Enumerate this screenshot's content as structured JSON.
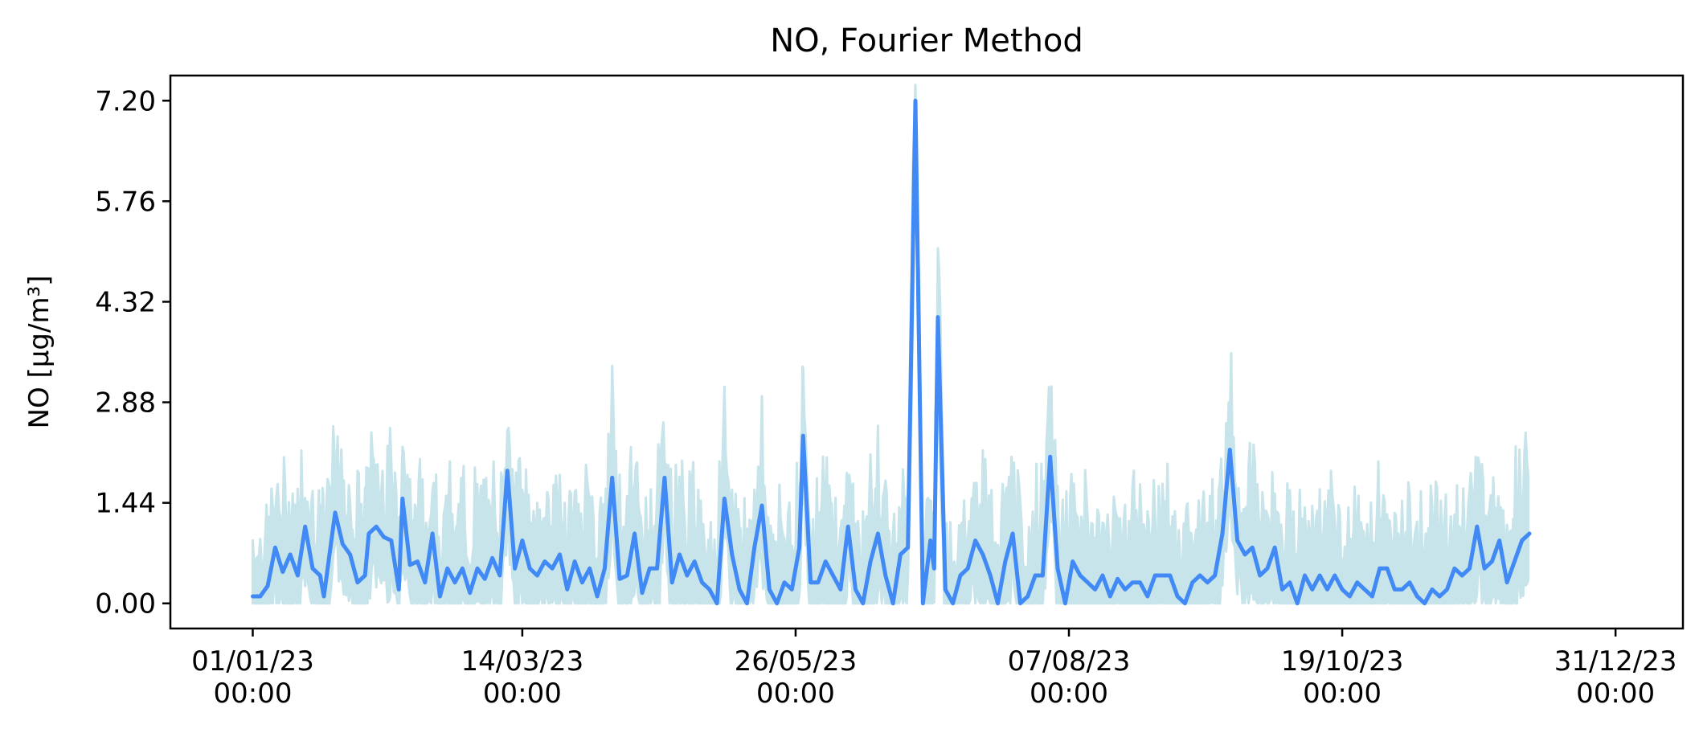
{
  "chart_data": {
    "type": "line",
    "title": "NO, Fourier Method",
    "ylabel": "NO [µg/m³]",
    "xlabel": "",
    "ylim": [
      -0.36,
      7.56
    ],
    "xlim": [
      "2022-12-10",
      "2024-01-18"
    ],
    "yticks": [
      "0.00",
      "1.44",
      "2.88",
      "4.32",
      "5.76",
      "7.20"
    ],
    "xticks": [
      {
        "date": "2023-01-01",
        "line1": "01/01/23",
        "line2": "00:00"
      },
      {
        "date": "2023-03-14",
        "line1": "14/03/23",
        "line2": "00:00"
      },
      {
        "date": "2023-05-26",
        "line1": "26/05/23",
        "line2": "00:00"
      },
      {
        "date": "2023-08-07",
        "line1": "07/08/23",
        "line2": "00:00"
      },
      {
        "date": "2023-10-19",
        "line1": "19/10/23",
        "line2": "00:00"
      },
      {
        "date": "2023-12-31",
        "line1": "31/12/23",
        "line2": "00:00"
      }
    ],
    "grid": false,
    "legend": "none",
    "colors": {
      "line": "#4189f5",
      "band": "#c6e4ea"
    },
    "series": [
      {
        "values": [
          [
            "2023-01-01",
            0.1
          ],
          [
            "2023-01-03",
            0.1
          ],
          [
            "2023-01-05",
            0.25
          ],
          [
            "2023-01-07",
            0.8
          ],
          [
            "2023-01-09",
            0.45
          ],
          [
            "2023-01-11",
            0.7
          ],
          [
            "2023-01-13",
            0.4
          ],
          [
            "2023-01-15",
            1.1
          ],
          [
            "2023-01-17",
            0.5
          ],
          [
            "2023-01-19",
            0.4
          ],
          [
            "2023-01-20",
            0.1
          ],
          [
            "2023-01-23",
            1.3
          ],
          [
            "2023-01-25",
            0.85
          ],
          [
            "2023-01-27",
            0.7
          ],
          [
            "2023-01-29",
            0.3
          ],
          [
            "2023-01-31",
            0.4
          ],
          [
            "2023-02-01",
            1.0
          ],
          [
            "2023-02-03",
            1.1
          ],
          [
            "2023-02-05",
            0.95
          ],
          [
            "2023-02-07",
            0.9
          ],
          [
            "2023-02-09",
            0.2
          ],
          [
            "2023-02-10",
            1.5
          ],
          [
            "2023-02-12",
            0.55
          ],
          [
            "2023-02-14",
            0.6
          ],
          [
            "2023-02-16",
            0.3
          ],
          [
            "2023-02-18",
            1.0
          ],
          [
            "2023-02-20",
            0.1
          ],
          [
            "2023-02-22",
            0.5
          ],
          [
            "2023-02-24",
            0.3
          ],
          [
            "2023-02-26",
            0.5
          ],
          [
            "2023-02-28",
            0.15
          ],
          [
            "2023-03-02",
            0.5
          ],
          [
            "2023-03-04",
            0.35
          ],
          [
            "2023-03-06",
            0.65
          ],
          [
            "2023-03-08",
            0.4
          ],
          [
            "2023-03-10",
            1.9
          ],
          [
            "2023-03-12",
            0.5
          ],
          [
            "2023-03-14",
            0.9
          ],
          [
            "2023-03-16",
            0.5
          ],
          [
            "2023-03-18",
            0.4
          ],
          [
            "2023-03-20",
            0.6
          ],
          [
            "2023-03-22",
            0.5
          ],
          [
            "2023-03-24",
            0.7
          ],
          [
            "2023-03-26",
            0.2
          ],
          [
            "2023-03-28",
            0.6
          ],
          [
            "2023-03-30",
            0.3
          ],
          [
            "2023-04-01",
            0.5
          ],
          [
            "2023-04-03",
            0.1
          ],
          [
            "2023-04-05",
            0.5
          ],
          [
            "2023-04-07",
            1.8
          ],
          [
            "2023-04-09",
            0.35
          ],
          [
            "2023-04-11",
            0.4
          ],
          [
            "2023-04-13",
            1.0
          ],
          [
            "2023-04-15",
            0.15
          ],
          [
            "2023-04-17",
            0.5
          ],
          [
            "2023-04-19",
            0.5
          ],
          [
            "2023-04-21",
            1.8
          ],
          [
            "2023-04-23",
            0.3
          ],
          [
            "2023-04-25",
            0.7
          ],
          [
            "2023-04-27",
            0.4
          ],
          [
            "2023-04-29",
            0.6
          ],
          [
            "2023-05-01",
            0.3
          ],
          [
            "2023-05-03",
            0.2
          ],
          [
            "2023-05-05",
            0.0
          ],
          [
            "2023-05-07",
            1.5
          ],
          [
            "2023-05-09",
            0.7
          ],
          [
            "2023-05-11",
            0.2
          ],
          [
            "2023-05-13",
            0.0
          ],
          [
            "2023-05-15",
            0.8
          ],
          [
            "2023-05-17",
            1.4
          ],
          [
            "2023-05-19",
            0.2
          ],
          [
            "2023-05-21",
            0.0
          ],
          [
            "2023-05-23",
            0.3
          ],
          [
            "2023-05-25",
            0.2
          ],
          [
            "2023-05-27",
            0.8
          ],
          [
            "2023-05-28",
            2.4
          ],
          [
            "2023-05-30",
            0.3
          ],
          [
            "2023-06-01",
            0.3
          ],
          [
            "2023-06-03",
            0.6
          ],
          [
            "2023-06-05",
            0.4
          ],
          [
            "2023-06-07",
            0.2
          ],
          [
            "2023-06-09",
            1.1
          ],
          [
            "2023-06-11",
            0.2
          ],
          [
            "2023-06-13",
            0.0
          ],
          [
            "2023-06-15",
            0.6
          ],
          [
            "2023-06-17",
            1.0
          ],
          [
            "2023-06-19",
            0.4
          ],
          [
            "2023-06-21",
            0.0
          ],
          [
            "2023-06-23",
            0.7
          ],
          [
            "2023-06-25",
            0.8
          ],
          [
            "2023-06-27",
            7.2
          ],
          [
            "2023-06-29",
            0.0
          ],
          [
            "2023-07-01",
            0.9
          ],
          [
            "2023-07-02",
            0.5
          ],
          [
            "2023-07-03",
            4.1
          ],
          [
            "2023-07-05",
            0.2
          ],
          [
            "2023-07-07",
            0.0
          ],
          [
            "2023-07-09",
            0.4
          ],
          [
            "2023-07-11",
            0.5
          ],
          [
            "2023-07-13",
            0.9
          ],
          [
            "2023-07-15",
            0.7
          ],
          [
            "2023-07-17",
            0.4
          ],
          [
            "2023-07-19",
            0.0
          ],
          [
            "2023-07-21",
            0.6
          ],
          [
            "2023-07-23",
            1.0
          ],
          [
            "2023-07-25",
            0.0
          ],
          [
            "2023-07-27",
            0.1
          ],
          [
            "2023-07-29",
            0.4
          ],
          [
            "2023-07-31",
            0.4
          ],
          [
            "2023-08-02",
            2.1
          ],
          [
            "2023-08-04",
            0.5
          ],
          [
            "2023-08-06",
            0.0
          ],
          [
            "2023-08-08",
            0.6
          ],
          [
            "2023-08-10",
            0.4
          ],
          [
            "2023-08-12",
            0.3
          ],
          [
            "2023-08-14",
            0.2
          ],
          [
            "2023-08-16",
            0.4
          ],
          [
            "2023-08-18",
            0.1
          ],
          [
            "2023-08-20",
            0.35
          ],
          [
            "2023-08-22",
            0.2
          ],
          [
            "2023-08-24",
            0.3
          ],
          [
            "2023-08-26",
            0.3
          ],
          [
            "2023-08-28",
            0.1
          ],
          [
            "2023-08-30",
            0.4
          ],
          [
            "2023-09-01",
            0.4
          ],
          [
            "2023-09-03",
            0.4
          ],
          [
            "2023-09-05",
            0.1
          ],
          [
            "2023-09-07",
            0.0
          ],
          [
            "2023-09-09",
            0.3
          ],
          [
            "2023-09-11",
            0.4
          ],
          [
            "2023-09-13",
            0.3
          ],
          [
            "2023-09-15",
            0.4
          ],
          [
            "2023-09-17",
            1.0
          ],
          [
            "2023-09-19",
            2.2
          ],
          [
            "2023-09-21",
            0.9
          ],
          [
            "2023-09-23",
            0.7
          ],
          [
            "2023-09-25",
            0.8
          ],
          [
            "2023-09-27",
            0.4
          ],
          [
            "2023-09-29",
            0.5
          ],
          [
            "2023-10-01",
            0.8
          ],
          [
            "2023-10-03",
            0.2
          ],
          [
            "2023-10-05",
            0.3
          ],
          [
            "2023-10-07",
            0.0
          ],
          [
            "2023-10-09",
            0.4
          ],
          [
            "2023-10-11",
            0.2
          ],
          [
            "2023-10-13",
            0.4
          ],
          [
            "2023-10-15",
            0.2
          ],
          [
            "2023-10-17",
            0.4
          ],
          [
            "2023-10-19",
            0.2
          ],
          [
            "2023-10-21",
            0.1
          ],
          [
            "2023-10-23",
            0.3
          ],
          [
            "2023-10-25",
            0.2
          ],
          [
            "2023-10-27",
            0.1
          ],
          [
            "2023-10-29",
            0.5
          ],
          [
            "2023-10-31",
            0.5
          ],
          [
            "2023-11-02",
            0.2
          ],
          [
            "2023-11-04",
            0.2
          ],
          [
            "2023-11-06",
            0.3
          ],
          [
            "2023-11-08",
            0.1
          ],
          [
            "2023-11-10",
            0.0
          ],
          [
            "2023-11-12",
            0.2
          ],
          [
            "2023-11-14",
            0.1
          ],
          [
            "2023-11-16",
            0.2
          ],
          [
            "2023-11-18",
            0.5
          ],
          [
            "2023-11-20",
            0.4
          ],
          [
            "2023-11-22",
            0.5
          ],
          [
            "2023-11-24",
            1.1
          ],
          [
            "2023-11-26",
            0.5
          ],
          [
            "2023-11-28",
            0.6
          ],
          [
            "2023-11-30",
            0.9
          ],
          [
            "2023-12-02",
            0.3
          ],
          [
            "2023-12-04",
            0.6
          ],
          [
            "2023-12-06",
            0.9
          ],
          [
            "2023-12-08",
            1.0
          ]
        ]
      }
    ]
  }
}
